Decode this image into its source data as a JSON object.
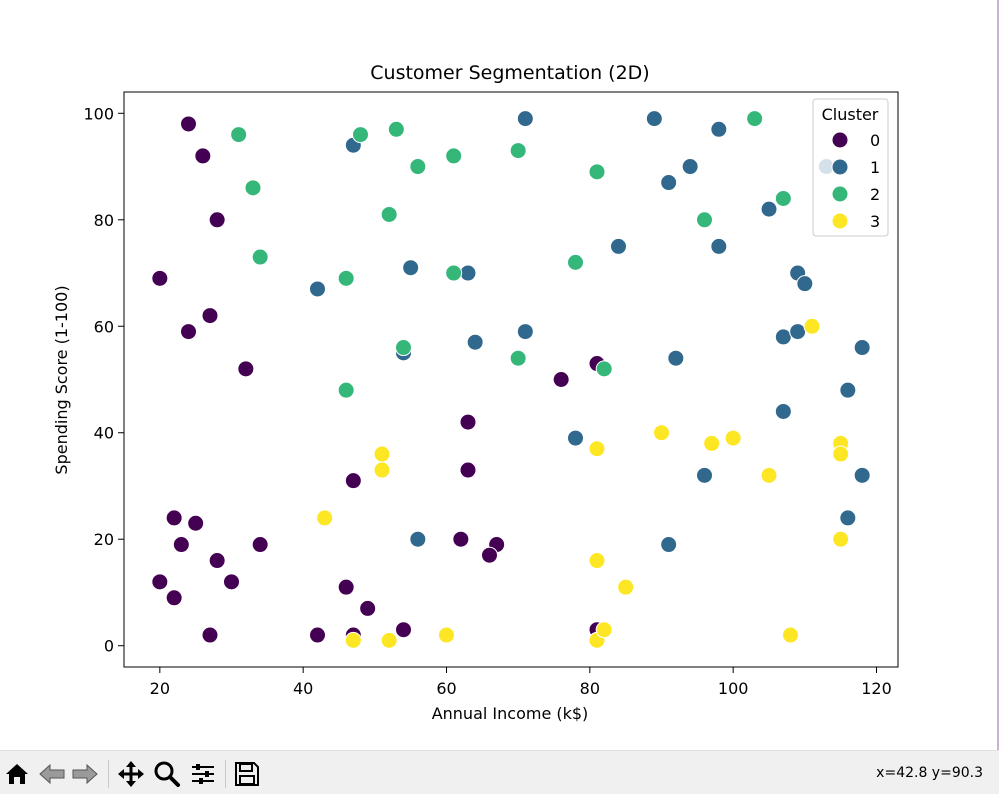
{
  "chart_data": {
    "type": "scatter",
    "title": "Customer Segmentation (2D)",
    "xlabel": "Annual Income (k$)",
    "ylabel": "Spending Score (1-100)",
    "xlim": [
      15,
      123
    ],
    "ylim": [
      -4,
      104
    ],
    "x_ticks": [
      20,
      40,
      60,
      80,
      100,
      120
    ],
    "y_ticks": [
      0,
      20,
      40,
      60,
      80,
      100
    ],
    "grid": false,
    "legend": {
      "title": "Cluster",
      "placement": "top-right"
    },
    "series": [
      {
        "name": "0",
        "color": "#440154",
        "points": [
          [
            24,
            98
          ],
          [
            26,
            92
          ],
          [
            28,
            80
          ],
          [
            20,
            69
          ],
          [
            27,
            62
          ],
          [
            24,
            59
          ],
          [
            32,
            52
          ],
          [
            76,
            50
          ],
          [
            81,
            53
          ],
          [
            63,
            42
          ],
          [
            63,
            33
          ],
          [
            47,
            31
          ],
          [
            22,
            24
          ],
          [
            25,
            23
          ],
          [
            23,
            19
          ],
          [
            34,
            19
          ],
          [
            28,
            16
          ],
          [
            20,
            12
          ],
          [
            30,
            12
          ],
          [
            22,
            9
          ],
          [
            46,
            11
          ],
          [
            49,
            7
          ],
          [
            27,
            2
          ],
          [
            42,
            2
          ],
          [
            47,
            2
          ],
          [
            54,
            3
          ],
          [
            62,
            20
          ],
          [
            67,
            19
          ],
          [
            66,
            17
          ],
          [
            81,
            3
          ]
        ]
      },
      {
        "name": "1",
        "color": "#31688e",
        "points": [
          [
            71,
            99
          ],
          [
            89,
            99
          ],
          [
            98,
            97
          ],
          [
            47,
            94
          ],
          [
            94,
            90
          ],
          [
            91,
            87
          ],
          [
            113,
            90
          ],
          [
            105,
            82
          ],
          [
            84,
            75
          ],
          [
            98,
            75
          ],
          [
            42,
            67
          ],
          [
            55,
            71
          ],
          [
            63,
            70
          ],
          [
            109,
            70
          ],
          [
            110,
            68
          ],
          [
            71,
            59
          ],
          [
            64,
            57
          ],
          [
            54,
            55
          ],
          [
            92,
            54
          ],
          [
            107,
            58
          ],
          [
            109,
            59
          ],
          [
            118,
            56
          ],
          [
            116,
            48
          ],
          [
            107,
            44
          ],
          [
            78,
            39
          ],
          [
            96,
            32
          ],
          [
            118,
            32
          ],
          [
            56,
            20
          ],
          [
            91,
            19
          ],
          [
            116,
            24
          ]
        ]
      },
      {
        "name": "2",
        "color": "#35b779",
        "points": [
          [
            31,
            96
          ],
          [
            48,
            96
          ],
          [
            53,
            97
          ],
          [
            70,
            93
          ],
          [
            56,
            90
          ],
          [
            61,
            92
          ],
          [
            81,
            89
          ],
          [
            33,
            86
          ],
          [
            52,
            81
          ],
          [
            103,
            99
          ],
          [
            107,
            84
          ],
          [
            96,
            80
          ],
          [
            34,
            73
          ],
          [
            46,
            69
          ],
          [
            61,
            70
          ],
          [
            78,
            72
          ],
          [
            54,
            56
          ],
          [
            70,
            54
          ],
          [
            82,
            52
          ],
          [
            46,
            48
          ]
        ]
      },
      {
        "name": "3",
        "color": "#fde725",
        "points": [
          [
            111,
            60
          ],
          [
            90,
            40
          ],
          [
            97,
            38
          ],
          [
            100,
            39
          ],
          [
            81,
            37
          ],
          [
            51,
            36
          ],
          [
            51,
            33
          ],
          [
            105,
            32
          ],
          [
            115,
            38
          ],
          [
            115,
            36
          ],
          [
            43,
            24
          ],
          [
            115,
            20
          ],
          [
            81,
            16
          ],
          [
            85,
            11
          ],
          [
            60,
            2
          ],
          [
            47,
            1
          ],
          [
            52,
            1
          ],
          [
            81,
            1
          ],
          [
            82,
            3
          ],
          [
            108,
            2
          ]
        ]
      }
    ]
  },
  "toolbar": {
    "buttons": [
      {
        "name": "home-button",
        "icon": "home-icon"
      },
      {
        "name": "back-button",
        "icon": "back-arrow-icon"
      },
      {
        "name": "forward-button",
        "icon": "forward-arrow-icon"
      },
      {
        "name": "pan-button",
        "icon": "move-icon"
      },
      {
        "name": "zoom-button",
        "icon": "magnifier-icon"
      },
      {
        "name": "configure-subplots-button",
        "icon": "sliders-icon"
      },
      {
        "name": "save-button",
        "icon": "floppy-icon"
      }
    ],
    "coords": "x=42.8 y=90.3"
  }
}
